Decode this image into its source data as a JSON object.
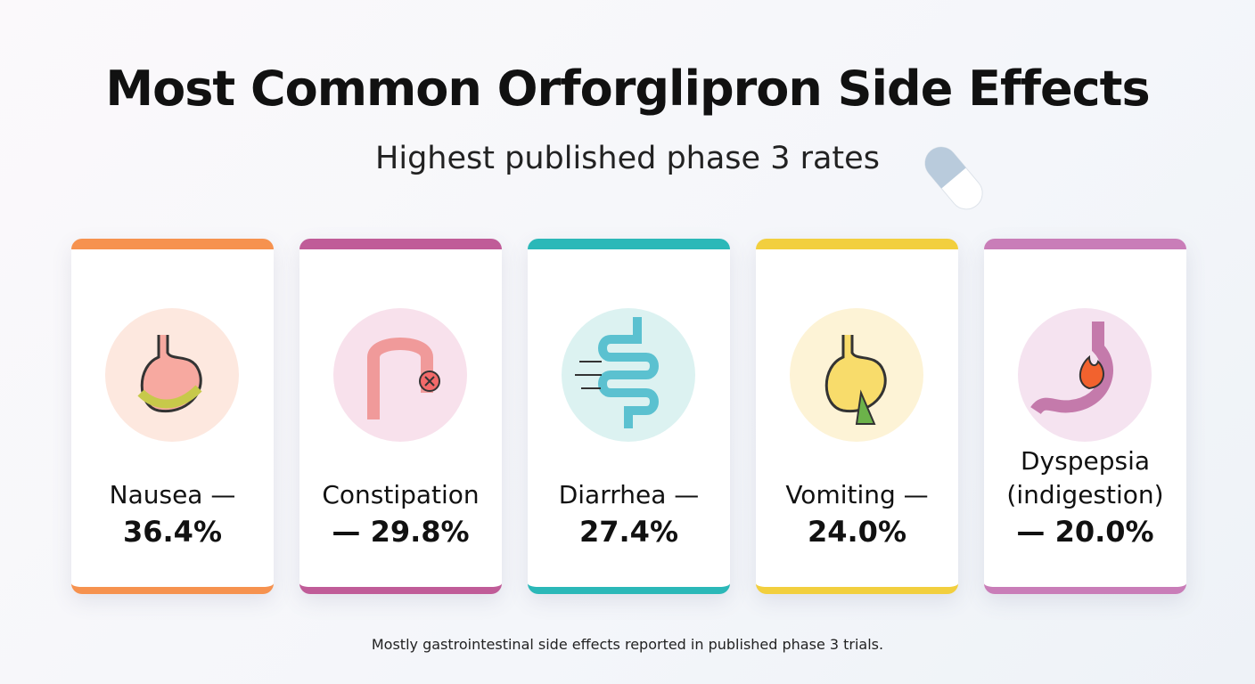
{
  "header": {
    "title": "Most Common Orforglipron Side Effects",
    "subtitle": "Highest published phase 3 rates"
  },
  "cards": [
    {
      "label": "Nausea —",
      "value": "36.4%"
    },
    {
      "label": "Constipation",
      "value": "— 29.8%"
    },
    {
      "label": "Diarrhea —",
      "value": "27.4%"
    },
    {
      "label": "Vomiting —",
      "value": "24.0%"
    },
    {
      "label": "Dyspepsia (indigestion)",
      "value": "— 20.0%"
    }
  ],
  "footer": "Mostly gastrointestinal side effects reported in published phase 3 trials."
}
